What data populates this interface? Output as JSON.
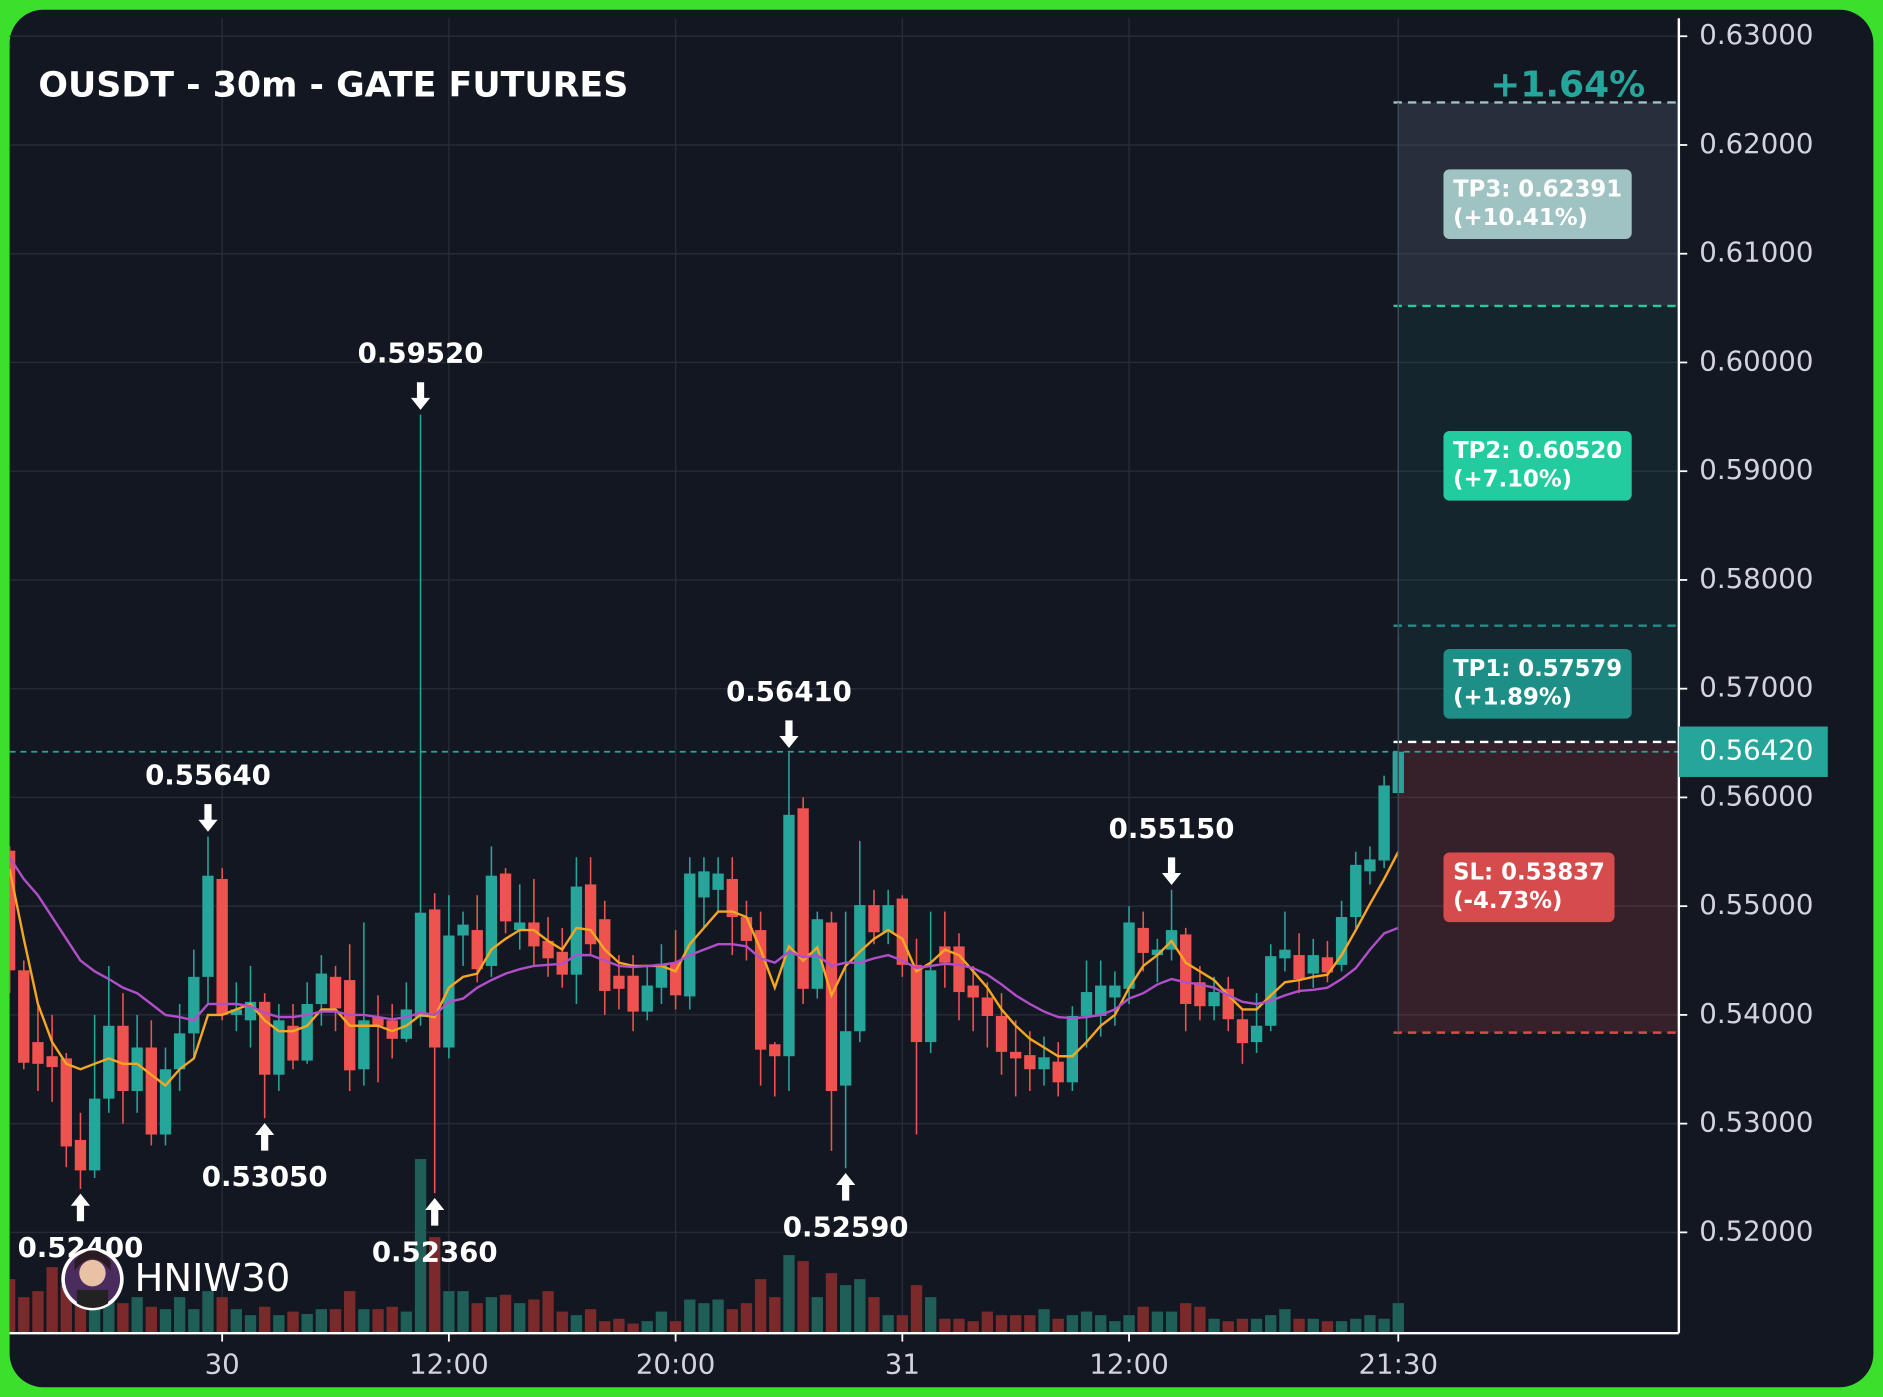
{
  "chart_data": {
    "type": "candlestick",
    "title": "OUSDT - 30m - GATE FUTURES",
    "watermark": "HNIW30",
    "pnl_label": "+1.64%",
    "up_color": "#26a69a",
    "down_color": "#ef5350",
    "open": [
      0.5551,
      0.5441,
      0.5375,
      0.5362,
      0.536,
      0.5285,
      0.5257,
      0.5323,
      0.539,
      0.533,
      0.537,
      0.529,
      0.535,
      0.5383,
      0.5435,
      0.5525,
      0.54,
      0.5395,
      0.5412,
      0.5345,
      0.539,
      0.5358,
      0.541,
      0.5435,
      0.5432,
      0.535,
      0.5398,
      0.5395,
      0.5378,
      0.5398,
      0.5497,
      0.537,
      0.5473,
      0.5478,
      0.5445,
      0.553,
      0.5478,
      0.5485,
      0.5468,
      0.5458,
      0.5437,
      0.552,
      0.5488,
      0.5436,
      0.5436,
      0.5403,
      0.5425,
      0.5448,
      0.5417,
      0.5508,
      0.5515,
      0.5525,
      0.549,
      0.5478,
      0.5373,
      0.5362,
      0.559,
      0.5424,
      0.5485,
      0.5335,
      0.5385,
      0.5501,
      0.5476,
      0.5507,
      0.5446,
      0.5375,
      0.5463,
      0.5463,
      0.5427,
      0.5416,
      0.5399,
      0.5366,
      0.5363,
      0.535,
      0.5357,
      0.5338,
      0.5399,
      0.5399,
      0.5416,
      0.5424,
      0.548,
      0.5455,
      0.546,
      0.5474,
      0.543,
      0.5408,
      0.5424,
      0.5396,
      0.5375,
      0.539,
      0.5452,
      0.5455,
      0.5438,
      0.5453,
      0.5446,
      0.549,
      0.5532,
      0.5542,
      0.5604
    ],
    "high": [
      0.5555,
      0.545,
      0.541,
      0.54,
      0.5365,
      0.531,
      0.54,
      0.5445,
      0.542,
      0.54,
      0.5395,
      0.537,
      0.541,
      0.546,
      0.5564,
      0.5535,
      0.543,
      0.5445,
      0.542,
      0.541,
      0.541,
      0.543,
      0.5455,
      0.5445,
      0.5465,
      0.5485,
      0.5418,
      0.541,
      0.543,
      0.5952,
      0.5512,
      0.551,
      0.5495,
      0.551,
      0.5555,
      0.5535,
      0.552,
      0.5525,
      0.549,
      0.548,
      0.5545,
      0.5545,
      0.5505,
      0.5455,
      0.5455,
      0.5445,
      0.5465,
      0.5478,
      0.5545,
      0.5545,
      0.5545,
      0.5545,
      0.5505,
      0.5495,
      0.5375,
      0.5641,
      0.56,
      0.5495,
      0.5495,
      0.5495,
      0.556,
      0.5515,
      0.5515,
      0.551,
      0.547,
      0.5495,
      0.5495,
      0.5475,
      0.5445,
      0.543,
      0.542,
      0.5395,
      0.5385,
      0.538,
      0.5375,
      0.5408,
      0.545,
      0.545,
      0.544,
      0.55,
      0.5495,
      0.547,
      0.5515,
      0.548,
      0.5445,
      0.5435,
      0.5435,
      0.5405,
      0.542,
      0.5465,
      0.5495,
      0.5475,
      0.547,
      0.5468,
      0.5505,
      0.555,
      0.5555,
      0.562,
      0.575
    ],
    "low": [
      0.542,
      0.535,
      0.533,
      0.532,
      0.526,
      0.524,
      0.525,
      0.531,
      0.53,
      0.531,
      0.528,
      0.528,
      0.533,
      0.536,
      0.541,
      0.5395,
      0.5385,
      0.537,
      0.5305,
      0.533,
      0.535,
      0.5355,
      0.539,
      0.5385,
      0.533,
      0.5335,
      0.5338,
      0.536,
      0.5375,
      0.539,
      0.5236,
      0.536,
      0.5445,
      0.543,
      0.5435,
      0.5475,
      0.546,
      0.5445,
      0.5435,
      0.5425,
      0.541,
      0.5455,
      0.54,
      0.5405,
      0.5385,
      0.5395,
      0.541,
      0.5405,
      0.5405,
      0.548,
      0.5495,
      0.5455,
      0.545,
      0.5335,
      0.5325,
      0.533,
      0.541,
      0.5415,
      0.5275,
      0.5259,
      0.5375,
      0.5465,
      0.5465,
      0.5435,
      0.529,
      0.5365,
      0.5425,
      0.5395,
      0.5385,
      0.537,
      0.5345,
      0.5325,
      0.533,
      0.5335,
      0.5325,
      0.533,
      0.537,
      0.538,
      0.539,
      0.541,
      0.544,
      0.543,
      0.545,
      0.5385,
      0.5395,
      0.5395,
      0.5385,
      0.5355,
      0.5365,
      0.5385,
      0.544,
      0.542,
      0.5425,
      0.543,
      0.544,
      0.548,
      0.552,
      0.5535,
      0.56
    ],
    "close": [
      0.5441,
      0.5356,
      0.5355,
      0.5352,
      0.5279,
      0.5257,
      0.5323,
      0.539,
      0.533,
      0.537,
      0.529,
      0.535,
      0.5383,
      0.5435,
      0.5528,
      0.54,
      0.5405,
      0.5412,
      0.5345,
      0.5395,
      0.5358,
      0.541,
      0.5438,
      0.5406,
      0.5349,
      0.5395,
      0.539,
      0.5378,
      0.5405,
      0.5494,
      0.537,
      0.5473,
      0.5483,
      0.5442,
      0.5528,
      0.5486,
      0.5485,
      0.5463,
      0.5452,
      0.5437,
      0.5518,
      0.5465,
      0.5422,
      0.5424,
      0.5403,
      0.5427,
      0.5447,
      0.5418,
      0.553,
      0.5532,
      0.553,
      0.549,
      0.5468,
      0.5368,
      0.5362,
      0.5584,
      0.5424,
      0.5488,
      0.533,
      0.5385,
      0.5501,
      0.5476,
      0.5501,
      0.5446,
      0.5375,
      0.5441,
      0.5448,
      0.5421,
      0.5416,
      0.5399,
      0.5366,
      0.536,
      0.535,
      0.5361,
      0.5338,
      0.5399,
      0.5421,
      0.5427,
      0.5427,
      0.5485,
      0.5457,
      0.546,
      0.5478,
      0.541,
      0.5408,
      0.5421,
      0.5396,
      0.5374,
      0.539,
      0.5454,
      0.546,
      0.5433,
      0.5455,
      0.5439,
      0.549,
      0.5538,
      0.5543,
      0.5611,
      0.5642
    ],
    "volume": [
      45,
      30,
      35,
      55,
      40,
      48,
      50,
      40,
      25,
      30,
      22,
      20,
      30,
      20,
      35,
      30,
      20,
      15,
      22,
      15,
      18,
      16,
      20,
      20,
      35,
      20,
      20,
      22,
      18,
      145,
      80,
      35,
      35,
      25,
      30,
      32,
      25,
      28,
      35,
      18,
      15,
      20,
      10,
      12,
      8,
      10,
      18,
      10,
      28,
      25,
      28,
      20,
      25,
      45,
      30,
      65,
      60,
      30,
      50,
      40,
      45,
      30,
      15,
      15,
      40,
      30,
      12,
      12,
      10,
      18,
      15,
      15,
      15,
      20,
      12,
      15,
      18,
      15,
      10,
      15,
      22,
      18,
      18,
      25,
      22,
      12,
      10,
      12,
      12,
      15,
      20,
      12,
      12,
      10,
      10,
      12,
      15,
      12,
      25
    ],
    "volume_up_color": "#1f5f57",
    "volume_down_color": "#7a2a2a",
    "lines": [
      {
        "color": "#f5a623",
        "values": [
          0.5534,
          0.547,
          0.541,
          0.5375,
          0.5355,
          0.535,
          0.5355,
          0.536,
          0.5355,
          0.5355,
          0.5345,
          0.5335,
          0.535,
          0.536,
          0.54,
          0.54,
          0.5405,
          0.541,
          0.5395,
          0.5385,
          0.5385,
          0.539,
          0.5405,
          0.5405,
          0.539,
          0.539,
          0.539,
          0.5385,
          0.539,
          0.54,
          0.5398,
          0.5425,
          0.5435,
          0.5438,
          0.546,
          0.547,
          0.5478,
          0.5478,
          0.5468,
          0.546,
          0.548,
          0.5478,
          0.546,
          0.5448,
          0.5445,
          0.5445,
          0.5445,
          0.544,
          0.5465,
          0.548,
          0.5495,
          0.5495,
          0.549,
          0.546,
          0.5425,
          0.5463,
          0.545,
          0.5462,
          0.5418,
          0.5445,
          0.5458,
          0.547,
          0.5478,
          0.547,
          0.544,
          0.5448,
          0.546,
          0.5455,
          0.544,
          0.5425,
          0.5405,
          0.539,
          0.5378,
          0.537,
          0.5362,
          0.5362,
          0.5375,
          0.539,
          0.54,
          0.5425,
          0.5445,
          0.5455,
          0.5468,
          0.5448,
          0.544,
          0.5432,
          0.5418,
          0.5405,
          0.5405,
          0.5418,
          0.543,
          0.5432,
          0.5435,
          0.5437,
          0.5455,
          0.5478,
          0.5502,
          0.5525,
          0.555
        ]
      },
      {
        "color": "#b04fc8",
        "values": [
          0.5545,
          0.5525,
          0.551,
          0.549,
          0.547,
          0.545,
          0.544,
          0.5433,
          0.5425,
          0.542,
          0.541,
          0.54,
          0.5398,
          0.5395,
          0.541,
          0.541,
          0.541,
          0.5408,
          0.5402,
          0.5398,
          0.5398,
          0.54,
          0.5403,
          0.5403,
          0.54,
          0.54,
          0.5398,
          0.5396,
          0.5398,
          0.5402,
          0.54,
          0.5412,
          0.5415,
          0.5425,
          0.5432,
          0.5438,
          0.5442,
          0.5445,
          0.5446,
          0.5447,
          0.5455,
          0.5455,
          0.545,
          0.5445,
          0.5444,
          0.5445,
          0.5446,
          0.5448,
          0.5455,
          0.546,
          0.5465,
          0.5465,
          0.5463,
          0.5452,
          0.5448,
          0.5458,
          0.5453,
          0.5455,
          0.5445,
          0.5448,
          0.5448,
          0.5452,
          0.5455,
          0.545,
          0.5443,
          0.5445,
          0.5447,
          0.5446,
          0.5443,
          0.5437,
          0.5428,
          0.5418,
          0.541,
          0.5403,
          0.5398,
          0.5397,
          0.5398,
          0.54,
          0.5405,
          0.5415,
          0.542,
          0.5428,
          0.5433,
          0.543,
          0.5428,
          0.5425,
          0.5418,
          0.5412,
          0.541,
          0.5413,
          0.5418,
          0.5422,
          0.5423,
          0.5425,
          0.5433,
          0.5443,
          0.546,
          0.5475,
          0.548
        ]
      }
    ],
    "annotations": [
      {
        "label": "0.52400",
        "value": 0.524,
        "x": 5,
        "side": "low"
      },
      {
        "label": "0.55640",
        "value": 0.5564,
        "x": 14,
        "side": "high"
      },
      {
        "label": "0.53050",
        "value": 0.5305,
        "x": 18,
        "side": "low"
      },
      {
        "label": "0.59520",
        "value": 0.5952,
        "x": 29,
        "side": "high"
      },
      {
        "label": "0.52360",
        "value": 0.5236,
        "x": 30,
        "side": "low"
      },
      {
        "label": "0.56410",
        "value": 0.5641,
        "x": 55,
        "side": "high"
      },
      {
        "label": "0.52590",
        "value": 0.5259,
        "x": 59,
        "side": "low"
      },
      {
        "label": "0.55150",
        "value": 0.5515,
        "x": 82,
        "side": "high"
      }
    ],
    "entry": 0.5651,
    "trade_start": 98,
    "levels": [
      {
        "label": "TP3: 0.62391",
        "change": "(+10.41%)",
        "value": 0.62391,
        "color": "#9fc2c2"
      },
      {
        "label": "TP2: 0.60520",
        "change": "(+7.10%)",
        "value": 0.6052,
        "color": "#22cc9f"
      },
      {
        "label": "TP1: 0.57579",
        "change": "(+1.89%)",
        "value": 0.57579,
        "color": "#1e8f86"
      },
      {
        "label": "SL: 0.53837",
        "change": "(-4.73%)",
        "value": 0.53837,
        "color": "#d64b4b"
      }
    ],
    "last_price": {
      "value": 0.5642,
      "label": "0.56420"
    },
    "xlim": [
      0,
      117.8
    ],
    "ylim": [
      0.51073,
      0.63166
    ],
    "xticks": [
      {
        "value": 15,
        "label": "30"
      },
      {
        "value": 31,
        "label": "12:00"
      },
      {
        "value": 47,
        "label": "20:00"
      },
      {
        "value": 63,
        "label": "31"
      },
      {
        "value": 79,
        "label": "12:00"
      },
      {
        "value": 98,
        "label": "21:30"
      }
    ],
    "yticks": [
      {
        "value": 0.52,
        "label": "0.52000"
      },
      {
        "value": 0.53,
        "label": "0.53000"
      },
      {
        "value": 0.54,
        "label": "0.54000"
      },
      {
        "value": 0.55,
        "label": "0.55000"
      },
      {
        "value": 0.56,
        "label": "0.56000"
      },
      {
        "value": 0.57,
        "label": "0.57000"
      },
      {
        "value": 0.58,
        "label": "0.58000"
      },
      {
        "value": 0.59,
        "label": "0.59000"
      },
      {
        "value": 0.6,
        "label": "0.60000"
      },
      {
        "value": 0.61,
        "label": "0.61000"
      },
      {
        "value": 0.62,
        "label": "0.62000"
      },
      {
        "value": 0.63,
        "label": "0.63000"
      }
    ],
    "grid": true
  }
}
